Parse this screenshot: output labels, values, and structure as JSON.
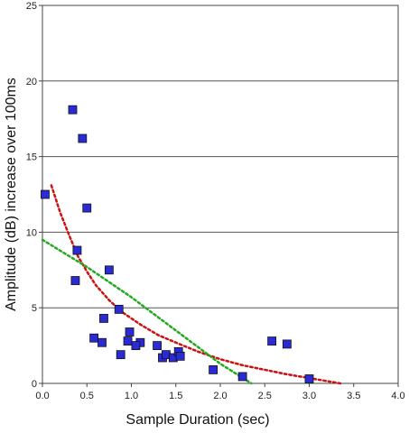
{
  "chart_data": {
    "type": "scatter",
    "xlabel": "Sample Duration (sec)",
    "ylabel": "Amplitude (dB) increase over 100ms",
    "xlim": [
      0,
      4
    ],
    "ylim": [
      0,
      25
    ],
    "x_ticks": [
      "0.0",
      "0.5",
      "1.0",
      "1.5",
      "2.0",
      "2.5",
      "3.0",
      "3.5",
      "4.0"
    ],
    "y_ticks": [
      "0",
      "5",
      "10",
      "15",
      "20",
      "25"
    ],
    "grid": "horizontal",
    "series": [
      {
        "kind": "markers",
        "color": "#2b2bd6",
        "points": [
          [
            0.03,
            12.5
          ],
          [
            0.34,
            18.1
          ],
          [
            0.45,
            16.2
          ],
          [
            0.5,
            11.6
          ],
          [
            0.39,
            8.8
          ],
          [
            0.37,
            6.8
          ],
          [
            0.75,
            7.5
          ],
          [
            0.86,
            4.9
          ],
          [
            0.69,
            4.3
          ],
          [
            0.58,
            3.0
          ],
          [
            0.67,
            2.7
          ],
          [
            0.98,
            3.4
          ],
          [
            0.96,
            2.8
          ],
          [
            1.1,
            2.7
          ],
          [
            1.05,
            2.5
          ],
          [
            0.88,
            1.9
          ],
          [
            1.29,
            2.5
          ],
          [
            1.35,
            1.7
          ],
          [
            1.39,
            1.9
          ],
          [
            1.47,
            1.7
          ],
          [
            1.53,
            2.1
          ],
          [
            1.55,
            1.8
          ],
          [
            1.92,
            0.9
          ],
          [
            2.25,
            0.45
          ],
          [
            2.58,
            2.8
          ],
          [
            2.75,
            2.6
          ],
          [
            3.0,
            0.3
          ]
        ]
      },
      {
        "kind": "curve",
        "color": "#cc1111",
        "points": [
          [
            0.1,
            13.1
          ],
          [
            0.2,
            11.3
          ],
          [
            0.3,
            9.8
          ],
          [
            0.4,
            8.4
          ],
          [
            0.5,
            7.4
          ],
          [
            0.6,
            6.5
          ],
          [
            0.75,
            5.5
          ],
          [
            0.9,
            4.7
          ],
          [
            1.1,
            3.9
          ],
          [
            1.3,
            3.2
          ],
          [
            1.5,
            2.7
          ],
          [
            1.75,
            2.1
          ],
          [
            2.0,
            1.6
          ],
          [
            2.25,
            1.2
          ],
          [
            2.5,
            0.9
          ],
          [
            2.75,
            0.6
          ],
          [
            3.0,
            0.35
          ],
          [
            3.2,
            0.15
          ],
          [
            3.35,
            0.0
          ]
        ]
      },
      {
        "kind": "curve",
        "color": "#22aa22",
        "points": [
          [
            0.0,
            9.5
          ],
          [
            0.5,
            7.7
          ],
          [
            1.0,
            5.7
          ],
          [
            1.5,
            3.5
          ],
          [
            2.0,
            1.3
          ],
          [
            2.35,
            0.0
          ]
        ]
      }
    ]
  }
}
